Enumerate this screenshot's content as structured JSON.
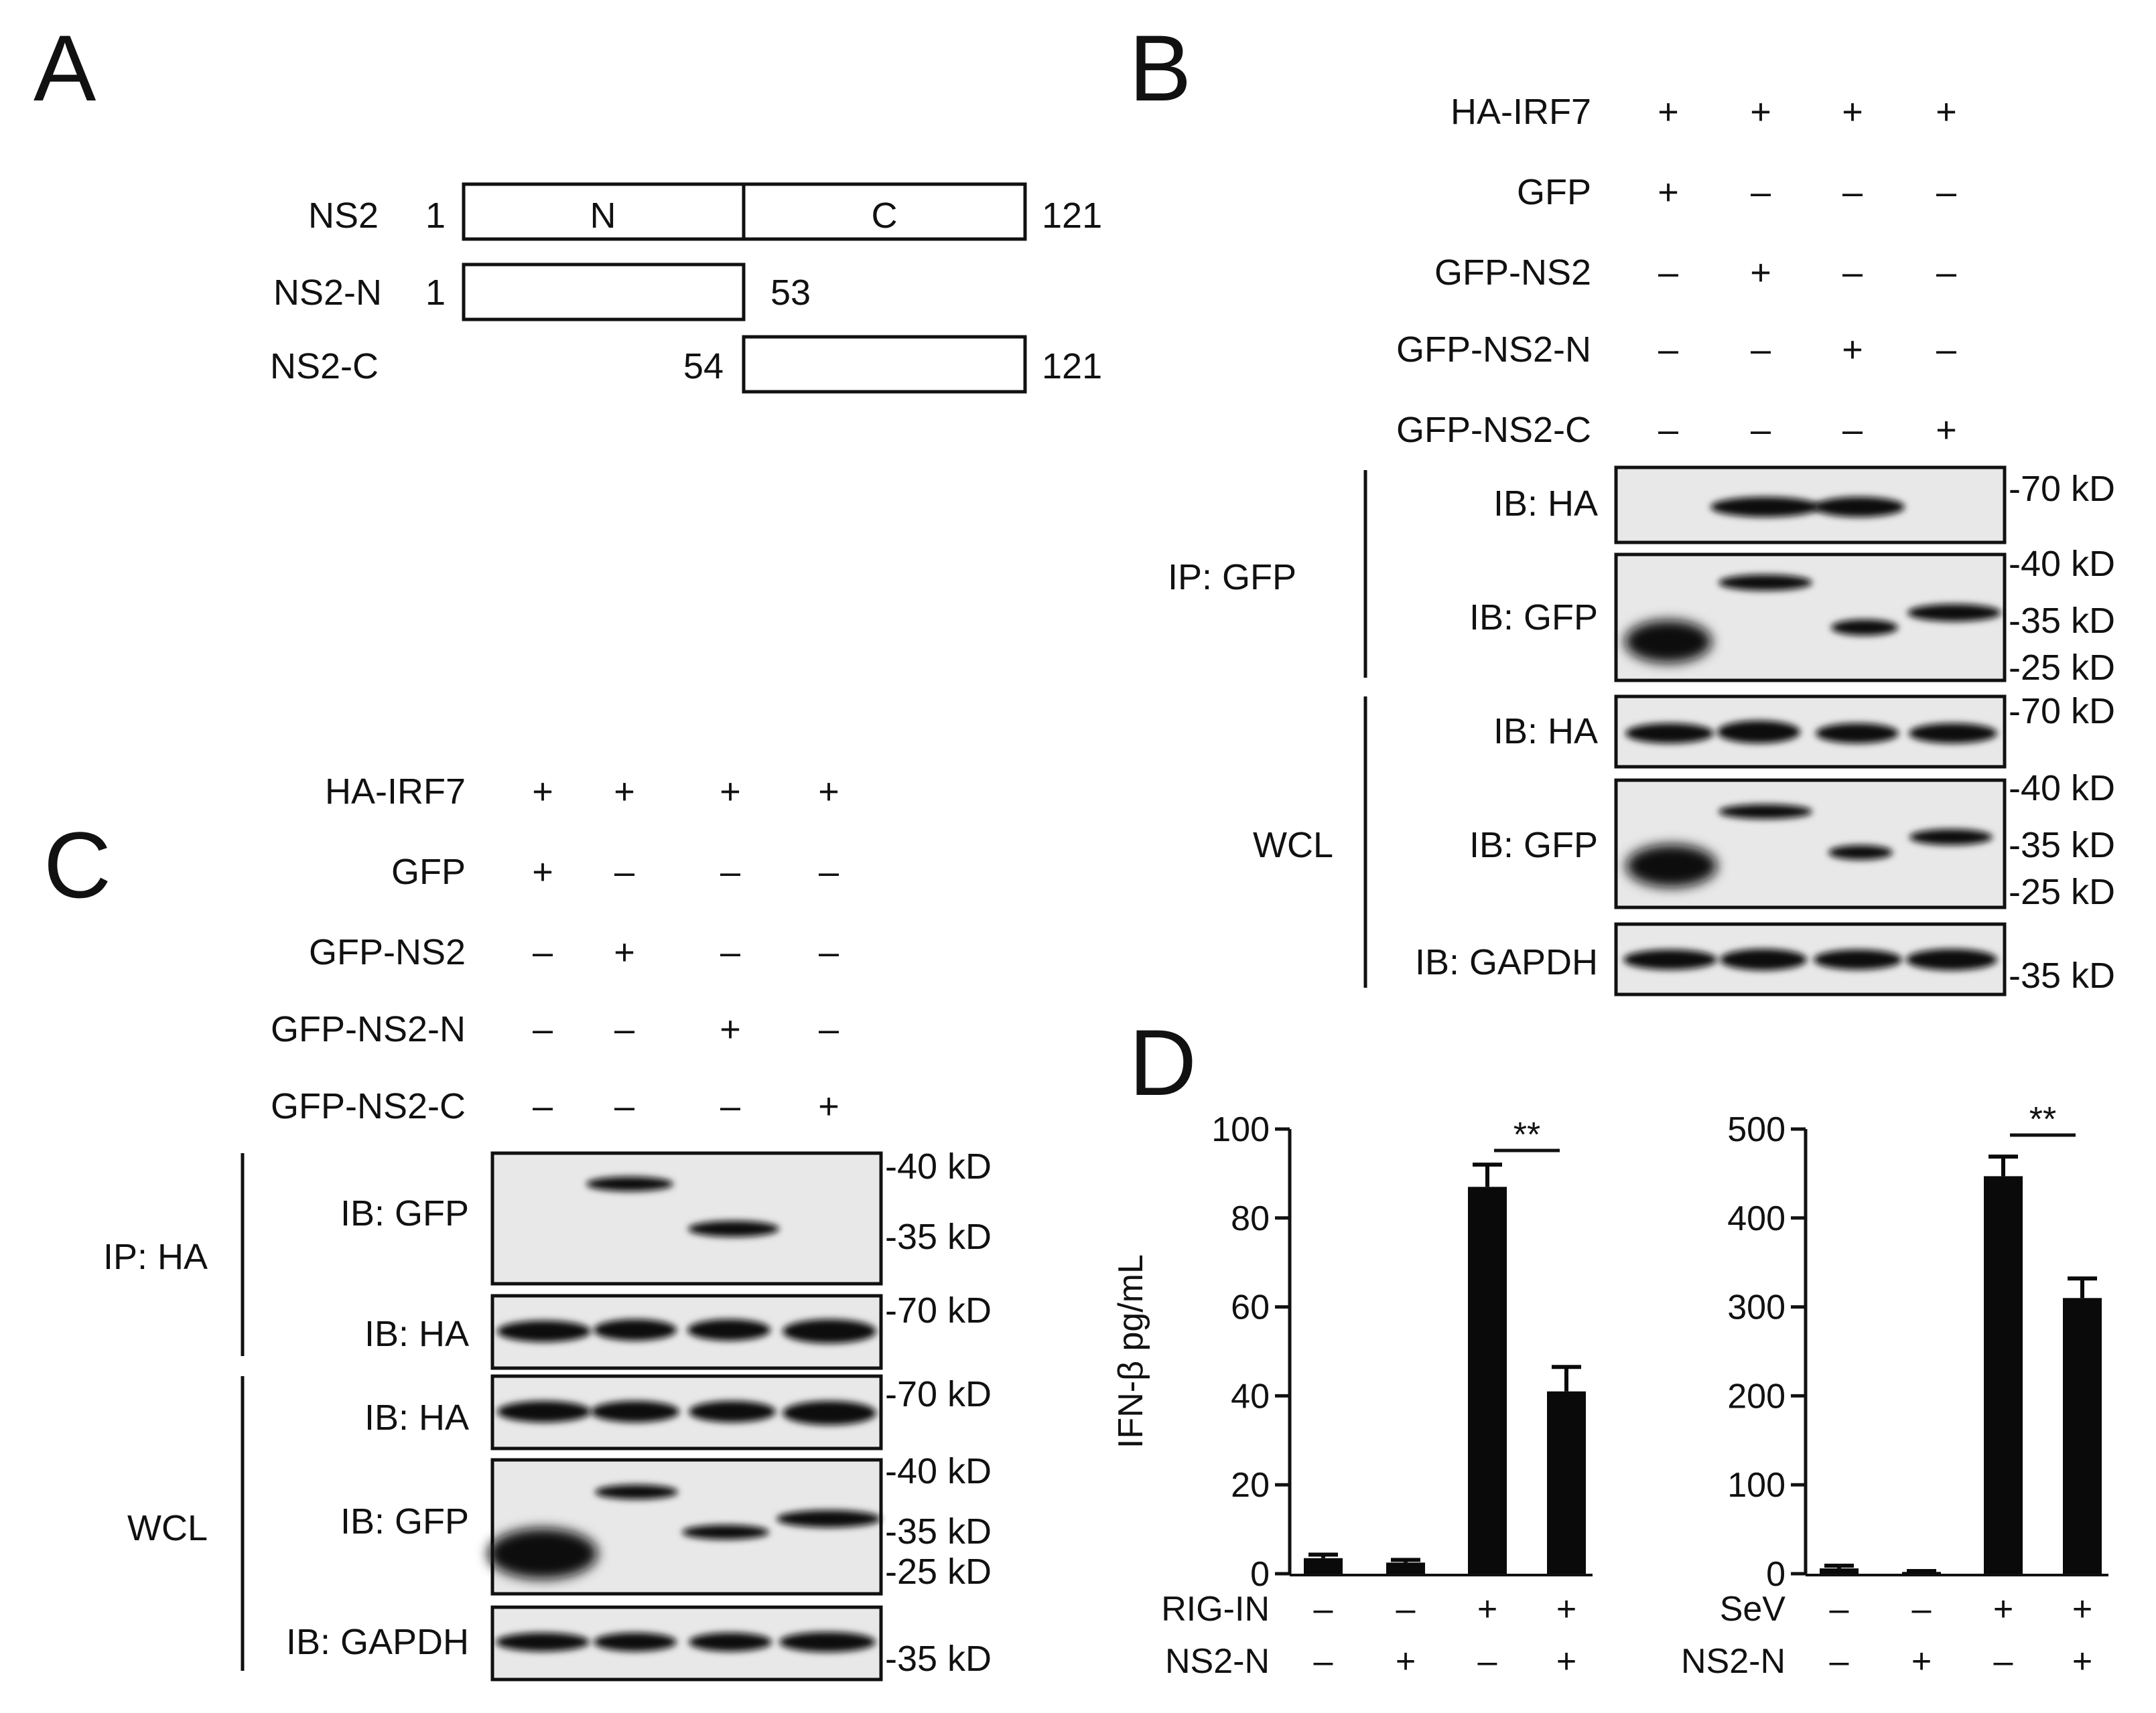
{
  "panels": {
    "a": "A",
    "b": "B",
    "c": "C",
    "d": "D"
  },
  "panel_a": {
    "rows": [
      {
        "name": "NS2",
        "start": "1",
        "end": "121",
        "seg_n": "N",
        "seg_c": "C"
      },
      {
        "name": "NS2-N",
        "start": "1",
        "end": "53"
      },
      {
        "name": "NS2-C",
        "start": "54",
        "end": "121"
      }
    ]
  },
  "panel_b": {
    "rows": [
      {
        "label": "HA-IRF7",
        "signs": [
          "+",
          "+",
          "+",
          "+"
        ]
      },
      {
        "label": "GFP",
        "signs": [
          "+",
          "–",
          "–",
          "–"
        ]
      },
      {
        "label": "GFP-NS2",
        "signs": [
          "–",
          "+",
          "–",
          "–"
        ]
      },
      {
        "label": "GFP-NS2-N",
        "signs": [
          "–",
          "–",
          "+",
          "–"
        ]
      },
      {
        "label": "GFP-NS2-C",
        "signs": [
          "–",
          "–",
          "–",
          "+"
        ]
      }
    ],
    "groups": {
      "ip": "IP: GFP",
      "wcl": "WCL"
    },
    "blots": [
      {
        "label": "IB: HA",
        "markers": [
          "-70 kD"
        ]
      },
      {
        "label": "IB: GFP",
        "markers": [
          "-40 kD",
          "-35 kD",
          "-25 kD"
        ]
      },
      {
        "label": "IB: HA",
        "markers": [
          "-70 kD"
        ]
      },
      {
        "label": "IB: GFP",
        "markers": [
          "-40 kD",
          "-35 kD",
          "-25 kD"
        ]
      },
      {
        "label": "IB: GAPDH",
        "markers": [
          "-35 kD"
        ]
      }
    ]
  },
  "panel_c": {
    "rows": [
      {
        "label": "HA-IRF7",
        "signs": [
          "+",
          "+",
          "+",
          "+"
        ]
      },
      {
        "label": "GFP",
        "signs": [
          "+",
          "–",
          "–",
          "–"
        ]
      },
      {
        "label": "GFP-NS2",
        "signs": [
          "–",
          "+",
          "–",
          "–"
        ]
      },
      {
        "label": "GFP-NS2-N",
        "signs": [
          "–",
          "–",
          "+",
          "–"
        ]
      },
      {
        "label": "GFP-NS2-C",
        "signs": [
          "–",
          "–",
          "–",
          "+"
        ]
      }
    ],
    "groups": {
      "ip": "IP: HA",
      "wcl": "WCL"
    },
    "blots": [
      {
        "label": "IB: GFP",
        "markers": [
          "-40 kD",
          "-35 kD"
        ]
      },
      {
        "label": "IB: HA",
        "markers": [
          "-70 kD"
        ]
      },
      {
        "label": "IB: HA",
        "markers": [
          "-70 kD"
        ]
      },
      {
        "label": "IB: GFP",
        "markers": [
          "-40 kD",
          "-35 kD",
          "-25 kD"
        ]
      },
      {
        "label": "IB: GAPDH",
        "markers": [
          "-35 kD"
        ]
      }
    ]
  },
  "chart_data": [
    {
      "type": "bar",
      "ylabel": "IFN-β pg/mL",
      "ylim": [
        0,
        100
      ],
      "yticks": [
        "0",
        "20",
        "40",
        "60",
        "80",
        "100"
      ],
      "values": [
        3.5,
        2.5,
        87,
        41
      ],
      "errors": [
        0.8,
        0.6,
        5,
        5.5
      ],
      "significance": "**",
      "conditions": [
        {
          "label": "RIG-IN",
          "signs": [
            "–",
            "–",
            "+",
            "+"
          ]
        },
        {
          "label": "NS2-N",
          "signs": [
            "–",
            "+",
            "–",
            "+"
          ]
        }
      ]
    },
    {
      "type": "bar",
      "ylabel": "",
      "ylim": [
        0,
        500
      ],
      "yticks": [
        "0",
        "100",
        "200",
        "300",
        "400",
        "500"
      ],
      "values": [
        6,
        2,
        447,
        310
      ],
      "errors": [
        3,
        1,
        22,
        22
      ],
      "significance": "**",
      "conditions": [
        {
          "label": "SeV",
          "signs": [
            "–",
            "–",
            "+",
            "+"
          ]
        },
        {
          "label": "NS2-N",
          "signs": [
            "–",
            "+",
            "–",
            "+"
          ]
        }
      ]
    }
  ]
}
